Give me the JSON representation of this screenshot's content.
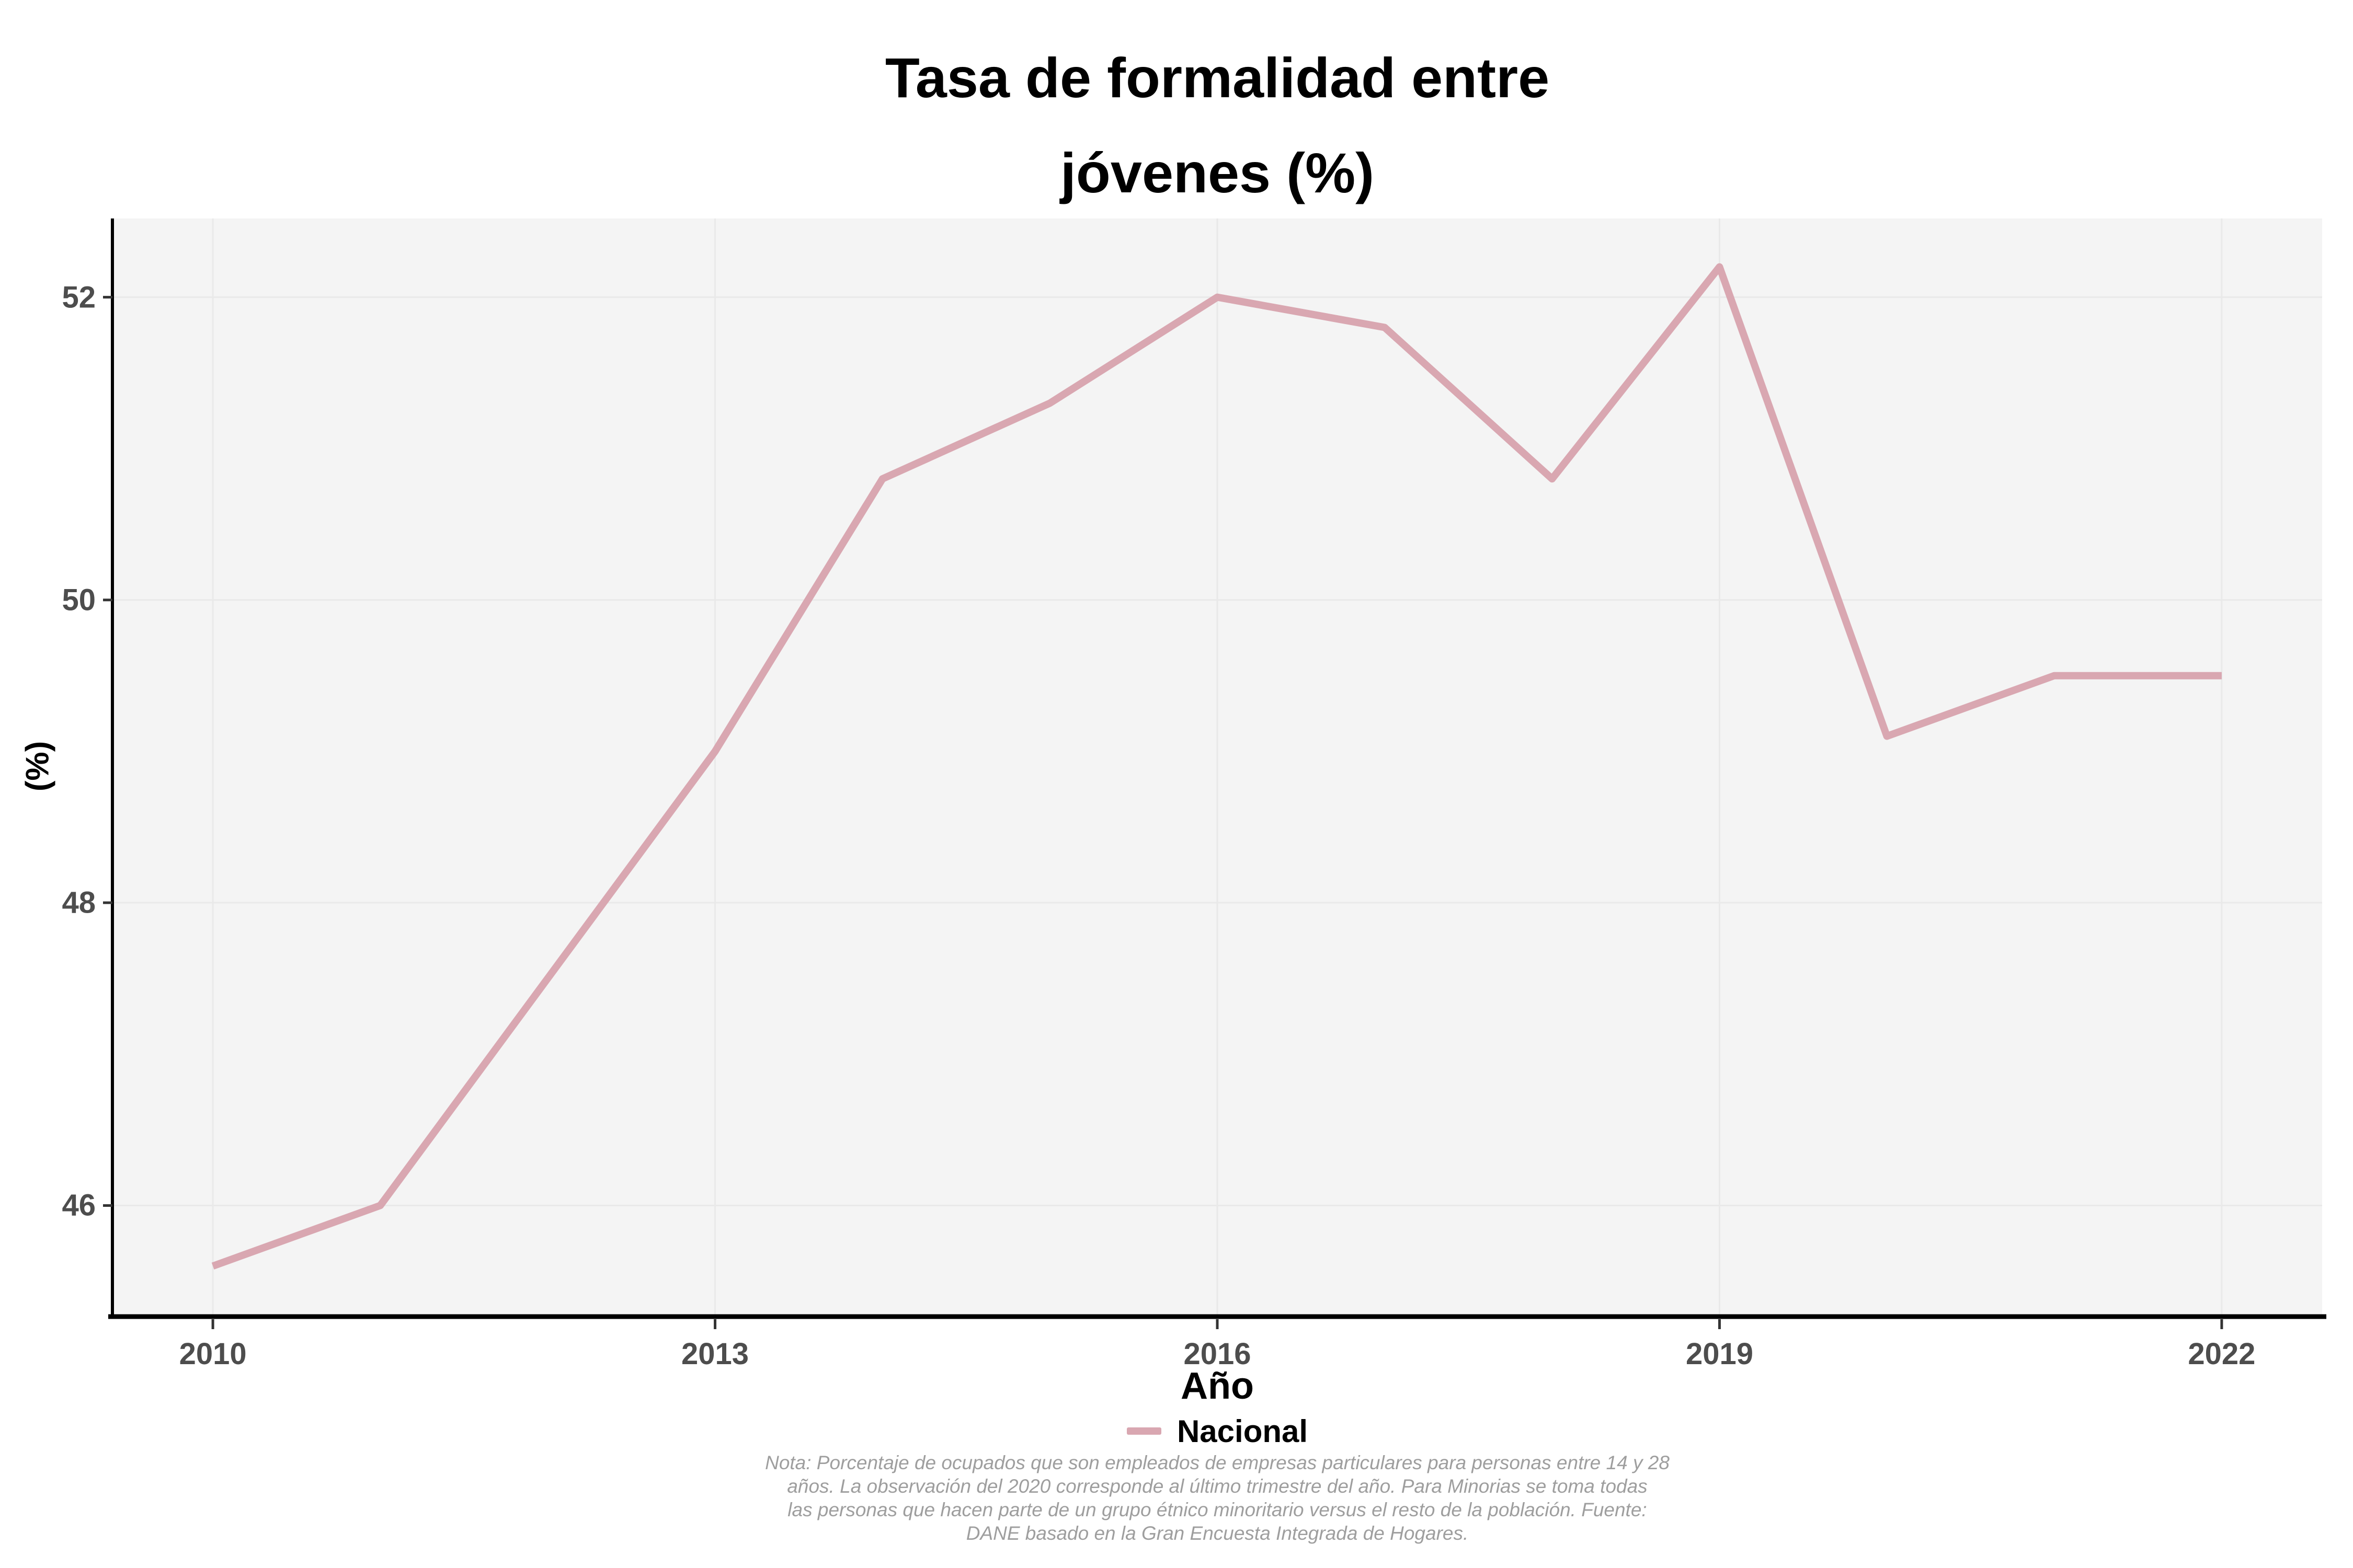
{
  "title": {
    "line1": "Tasa de formalidad entre",
    "line2": "jóvenes (%)"
  },
  "chart_data": {
    "type": "line",
    "x": [
      2010,
      2011,
      2012,
      2013,
      2014,
      2015,
      2016,
      2017,
      2018,
      2019,
      2020,
      2021,
      2022
    ],
    "series": [
      {
        "name": "Nacional",
        "values": [
          45.6,
          46.0,
          47.5,
          49.0,
          50.8,
          51.3,
          52.0,
          51.8,
          50.8,
          52.2,
          49.1,
          49.5,
          49.5
        ]
      }
    ],
    "xlabel": "Año",
    "ylabel": "(%)",
    "xticks": [
      2010,
      2013,
      2016,
      2019,
      2022
    ],
    "yticks": [
      46,
      48,
      50,
      52
    ],
    "xlim": [
      2009.4,
      2022.6
    ],
    "ylim": [
      45.28,
      52.52
    ],
    "grid": "major",
    "legend_position": "bottom",
    "line_color": "#D9A7B1"
  },
  "caption": {
    "lines": [
      "Nota: Porcentaje de ocupados que son empleados de empresas particulares para personas entre 14 y 28",
      "años. La observación del 2020 corresponde al último trimestre del año. Para Minorias se toma todas",
      "las personas que hacen parte de un grupo étnico minoritario versus el resto de la población. Fuente:",
      "DANE basado en la Gran Encuesta Integrada de Hogares."
    ]
  },
  "colors": {
    "panel_background": "#f4f4f4",
    "gridline": "#e9e9e9",
    "axis_line": "#000000",
    "tick_mark": "#333333",
    "tick_label": "#4d4d4d",
    "line": "#D9A7B1",
    "caption_text": "#9e9e9e"
  }
}
